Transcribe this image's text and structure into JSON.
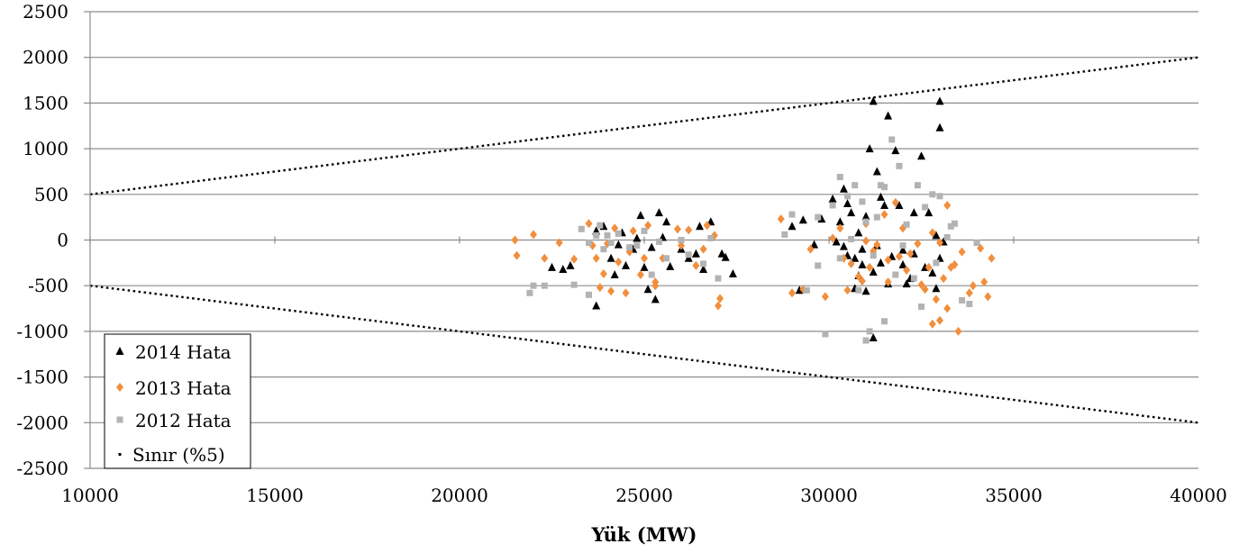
{
  "chart_data": {
    "type": "scatter",
    "title": "",
    "xlabel": "Yük (MW)",
    "ylabel": "",
    "xlim": [
      10000,
      40000
    ],
    "ylim": [
      -2500,
      2500
    ],
    "xticks": [
      "10000",
      "15000",
      "20000",
      "25000",
      "30000",
      "35000",
      "40000"
    ],
    "yticks": [
      "2500",
      "2000",
      "1500",
      "1000",
      "500",
      "0",
      "-500",
      "-1000",
      "-1500",
      "-2000",
      "-2500"
    ],
    "grid": "horizontal",
    "legend_position": "bottom-left",
    "colors": {
      "s2014": "#000000",
      "s2013": "#f28e3c",
      "s2012": "#b3b3b3",
      "limit": "#000000",
      "grid": "#8c8c8c"
    },
    "series": [
      {
        "name": "2014 Hata",
        "marker": "triangle",
        "points": [
          [
            23700,
            100
          ],
          [
            23900,
            150
          ],
          [
            24100,
            -200
          ],
          [
            24200,
            -380
          ],
          [
            24400,
            80
          ],
          [
            24700,
            -100
          ],
          [
            25000,
            -300
          ],
          [
            25200,
            -80
          ],
          [
            25400,
            300
          ],
          [
            25600,
            200
          ],
          [
            26000,
            -100
          ],
          [
            26200,
            -200
          ],
          [
            26400,
            -150
          ],
          [
            26600,
            -320
          ],
          [
            26800,
            200
          ],
          [
            27100,
            -150
          ],
          [
            27400,
            -370
          ],
          [
            23700,
            -720
          ],
          [
            25100,
            -540
          ],
          [
            25300,
            -650
          ],
          [
            22500,
            -300
          ],
          [
            22800,
            -320
          ],
          [
            23000,
            -280
          ],
          [
            24900,
            270
          ],
          [
            25500,
            30
          ],
          [
            25700,
            -290
          ],
          [
            26500,
            150
          ],
          [
            27200,
            -190
          ],
          [
            24300,
            -50
          ],
          [
            24500,
            -280
          ],
          [
            24800,
            20
          ],
          [
            29000,
            150
          ],
          [
            29200,
            -550
          ],
          [
            29300,
            220
          ],
          [
            29600,
            -50
          ],
          [
            29800,
            230
          ],
          [
            30100,
            450
          ],
          [
            30300,
            200
          ],
          [
            30400,
            560
          ],
          [
            30500,
            400
          ],
          [
            30600,
            300
          ],
          [
            30800,
            80
          ],
          [
            30900,
            -100
          ],
          [
            31000,
            260
          ],
          [
            31100,
            1000
          ],
          [
            31200,
            1520
          ],
          [
            31300,
            750
          ],
          [
            31400,
            470
          ],
          [
            31600,
            1360
          ],
          [
            31800,
            980
          ],
          [
            32000,
            -270
          ],
          [
            32100,
            -480
          ],
          [
            32300,
            300
          ],
          [
            32500,
            920
          ],
          [
            32700,
            300
          ],
          [
            32900,
            50
          ],
          [
            33000,
            1520
          ],
          [
            33000,
            1230
          ],
          [
            33100,
            -20
          ],
          [
            31200,
            -1070
          ],
          [
            31000,
            -560
          ],
          [
            30900,
            -270
          ],
          [
            31200,
            -350
          ],
          [
            31400,
            -250
          ],
          [
            30700,
            -530
          ],
          [
            32600,
            -300
          ],
          [
            32800,
            -360
          ],
          [
            32900,
            -530
          ],
          [
            31700,
            -180
          ],
          [
            32200,
            -420
          ],
          [
            30500,
            -170
          ],
          [
            30700,
            -200
          ],
          [
            31500,
            380
          ],
          [
            31900,
            380
          ],
          [
            30400,
            -70
          ],
          [
            30200,
            -20
          ],
          [
            33000,
            -200
          ],
          [
            32300,
            -150
          ],
          [
            31600,
            -480
          ],
          [
            31300,
            -60
          ],
          [
            30800,
            -390
          ],
          [
            32000,
            -110
          ]
        ]
      },
      {
        "name": "2013 Hata",
        "marker": "diamond",
        "points": [
          [
            21500,
            0
          ],
          [
            21550,
            -170
          ],
          [
            22000,
            60
          ],
          [
            22300,
            -200
          ],
          [
            22700,
            -30
          ],
          [
            23100,
            -210
          ],
          [
            23500,
            180
          ],
          [
            23700,
            -200
          ],
          [
            23800,
            -520
          ],
          [
            24000,
            -40
          ],
          [
            24100,
            -560
          ],
          [
            24300,
            -240
          ],
          [
            24500,
            -580
          ],
          [
            24700,
            100
          ],
          [
            24900,
            -380
          ],
          [
            25100,
            160
          ],
          [
            25300,
            -460
          ],
          [
            25500,
            -200
          ],
          [
            25900,
            120
          ],
          [
            26200,
            110
          ],
          [
            26400,
            -280
          ],
          [
            26700,
            160
          ],
          [
            26900,
            50
          ],
          [
            27000,
            -720
          ],
          [
            27050,
            -640
          ],
          [
            23900,
            -370
          ],
          [
            24200,
            130
          ],
          [
            24600,
            -130
          ],
          [
            25000,
            -200
          ],
          [
            25300,
            -500
          ],
          [
            26000,
            -60
          ],
          [
            26600,
            -100
          ],
          [
            23600,
            -60
          ],
          [
            28700,
            230
          ],
          [
            29000,
            -580
          ],
          [
            29300,
            -540
          ],
          [
            29500,
            -100
          ],
          [
            29900,
            -620
          ],
          [
            30100,
            20
          ],
          [
            30300,
            130
          ],
          [
            30500,
            -550
          ],
          [
            30600,
            -260
          ],
          [
            30800,
            -400
          ],
          [
            31100,
            -300
          ],
          [
            31300,
            -50
          ],
          [
            31600,
            -220
          ],
          [
            31800,
            410
          ],
          [
            32000,
            130
          ],
          [
            32200,
            -150
          ],
          [
            32400,
            -40
          ],
          [
            32600,
            -540
          ],
          [
            32800,
            -920
          ],
          [
            33000,
            -880
          ],
          [
            33200,
            -750
          ],
          [
            33400,
            -270
          ],
          [
            33600,
            -130
          ],
          [
            33900,
            -500
          ],
          [
            34100,
            -90
          ],
          [
            34200,
            -460
          ],
          [
            34300,
            -620
          ],
          [
            34400,
            -200
          ],
          [
            33500,
            -1000
          ],
          [
            33100,
            -420
          ],
          [
            32900,
            -650
          ],
          [
            33000,
            -30
          ],
          [
            33200,
            380
          ],
          [
            31900,
            -180
          ],
          [
            31200,
            -120
          ],
          [
            31000,
            -10
          ],
          [
            30400,
            -200
          ],
          [
            32700,
            -300
          ],
          [
            32500,
            -490
          ],
          [
            31600,
            -460
          ],
          [
            33800,
            -580
          ],
          [
            32100,
            -330
          ],
          [
            30900,
            -450
          ],
          [
            33300,
            -300
          ],
          [
            32800,
            80
          ],
          [
            31500,
            280
          ],
          [
            31000,
            180
          ]
        ]
      },
      {
        "name": "2012 Hata",
        "marker": "square",
        "points": [
          [
            21900,
            -580
          ],
          [
            22000,
            -500
          ],
          [
            22300,
            -500
          ],
          [
            23100,
            -490
          ],
          [
            23300,
            120
          ],
          [
            23500,
            -30
          ],
          [
            23700,
            50
          ],
          [
            23900,
            -100
          ],
          [
            24100,
            -30
          ],
          [
            24300,
            70
          ],
          [
            24600,
            -80
          ],
          [
            24800,
            -60
          ],
          [
            25000,
            100
          ],
          [
            25200,
            -380
          ],
          [
            25600,
            -200
          ],
          [
            26000,
            0
          ],
          [
            26200,
            -160
          ],
          [
            26600,
            -260
          ],
          [
            26800,
            20
          ],
          [
            27000,
            -420
          ],
          [
            23500,
            -600
          ],
          [
            24000,
            50
          ],
          [
            25400,
            -20
          ],
          [
            23800,
            160
          ],
          [
            28800,
            60
          ],
          [
            29000,
            280
          ],
          [
            29400,
            -550
          ],
          [
            29700,
            -280
          ],
          [
            29900,
            -1030
          ],
          [
            30100,
            380
          ],
          [
            30300,
            690
          ],
          [
            30500,
            480
          ],
          [
            30700,
            600
          ],
          [
            30900,
            420
          ],
          [
            31100,
            -1000
          ],
          [
            31200,
            -170
          ],
          [
            31500,
            580
          ],
          [
            31700,
            1100
          ],
          [
            31900,
            810
          ],
          [
            32100,
            170
          ],
          [
            32300,
            -420
          ],
          [
            32400,
            600
          ],
          [
            32600,
            360
          ],
          [
            32800,
            500
          ],
          [
            33000,
            480
          ],
          [
            33200,
            30
          ],
          [
            33400,
            180
          ],
          [
            33600,
            -660
          ],
          [
            33800,
            -700
          ],
          [
            34000,
            -30
          ],
          [
            31000,
            -1100
          ],
          [
            31500,
            -890
          ],
          [
            32500,
            -730
          ],
          [
            31400,
            600
          ],
          [
            30800,
            -550
          ],
          [
            30600,
            10
          ],
          [
            30300,
            -200
          ],
          [
            31000,
            200
          ],
          [
            32900,
            -250
          ],
          [
            33300,
            150
          ],
          [
            29700,
            250
          ],
          [
            31300,
            250
          ],
          [
            32000,
            -60
          ],
          [
            31800,
            -380
          ]
        ]
      },
      {
        "name": "Sınır (%5)",
        "marker": "line",
        "points": [
          [
            10000,
            500
          ],
          [
            40000,
            2000
          ]
        ]
      },
      {
        "name": "",
        "marker": "line",
        "points": [
          [
            10000,
            -500
          ],
          [
            40000,
            -2000
          ]
        ]
      }
    ]
  }
}
